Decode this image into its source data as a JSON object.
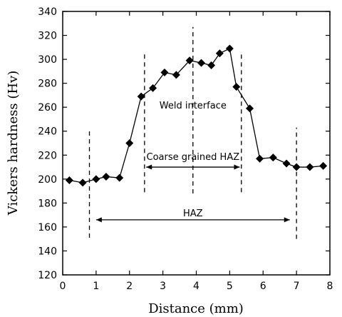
{
  "chart_data": {
    "type": "line",
    "xlabel": "Distance (mm)",
    "ylabel": "Vickers hardness (Hv)",
    "xlim": [
      0,
      8
    ],
    "ylim": [
      120,
      340
    ],
    "x_ticks": [
      0,
      1,
      2,
      3,
      4,
      5,
      6,
      7,
      8
    ],
    "y_ticks": [
      120,
      140,
      160,
      180,
      200,
      220,
      240,
      260,
      280,
      300,
      320,
      340
    ],
    "grid": false,
    "series": [
      {
        "marker": "diamond",
        "color": "#000000",
        "points": [
          {
            "x": 0.2,
            "y": 199
          },
          {
            "x": 0.6,
            "y": 197
          },
          {
            "x": 1.0,
            "y": 200
          },
          {
            "x": 1.3,
            "y": 202
          },
          {
            "x": 1.7,
            "y": 201
          },
          {
            "x": 2.0,
            "y": 230
          },
          {
            "x": 2.35,
            "y": 269
          },
          {
            "x": 2.7,
            "y": 276
          },
          {
            "x": 3.05,
            "y": 289
          },
          {
            "x": 3.4,
            "y": 287
          },
          {
            "x": 3.8,
            "y": 299
          },
          {
            "x": 4.15,
            "y": 297
          },
          {
            "x": 4.45,
            "y": 295
          },
          {
            "x": 4.7,
            "y": 305
          },
          {
            "x": 5.0,
            "y": 309
          },
          {
            "x": 5.2,
            "y": 277
          },
          {
            "x": 5.6,
            "y": 259
          },
          {
            "x": 5.9,
            "y": 217
          },
          {
            "x": 6.3,
            "y": 218
          },
          {
            "x": 6.7,
            "y": 213
          },
          {
            "x": 7.0,
            "y": 210
          },
          {
            "x": 7.4,
            "y": 210
          },
          {
            "x": 7.8,
            "y": 211
          }
        ]
      }
    ],
    "dashed_lines": [
      {
        "x": 0.8,
        "y_from": 151,
        "y_to": 240
      },
      {
        "x": 2.45,
        "y_from": 189,
        "y_to": 306
      },
      {
        "x": 3.9,
        "y_from": 188,
        "y_to": 327
      },
      {
        "x": 5.35,
        "y_from": 189,
        "y_to": 304
      },
      {
        "x": 7.0,
        "y_from": 150,
        "y_to": 243
      }
    ],
    "annotations": [
      {
        "text": "Weld interface",
        "x": 3.9,
        "y": 262
      },
      {
        "text": "Coarse grained HAZ",
        "x": 3.9,
        "y": 219
      },
      {
        "text": "HAZ",
        "x": 3.9,
        "y": 172
      }
    ],
    "spans": [
      {
        "x_from": 2.5,
        "x_to": 5.3,
        "y": 210
      },
      {
        "x_from": 1.0,
        "x_to": 6.8,
        "y": 166
      }
    ]
  }
}
